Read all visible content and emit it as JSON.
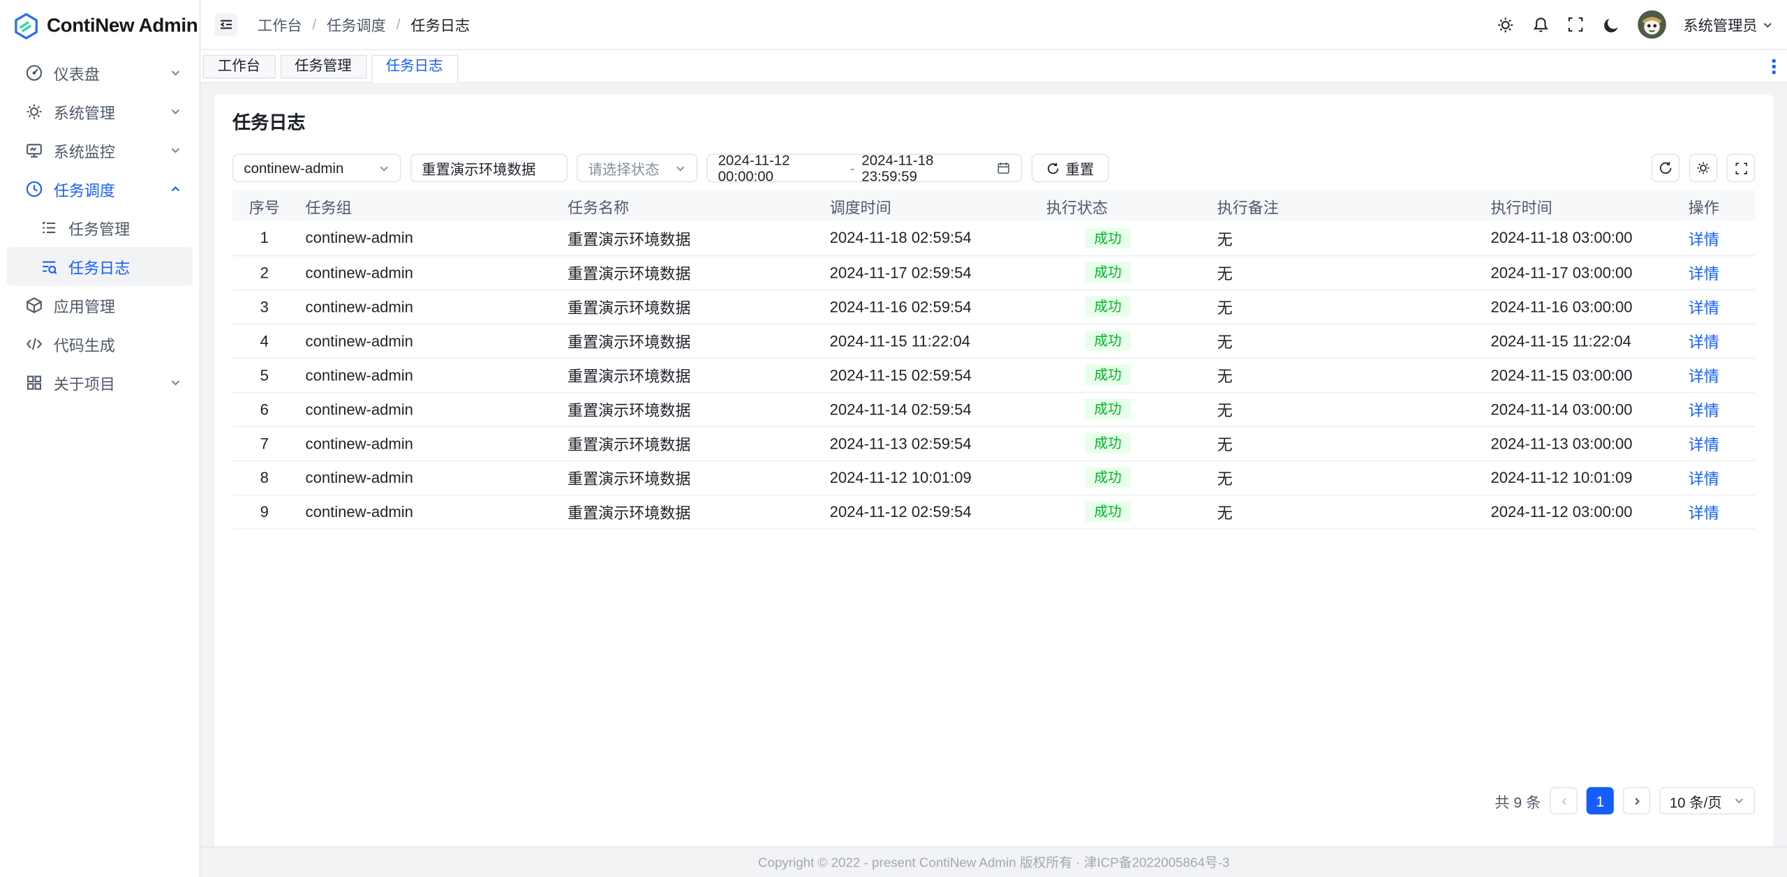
{
  "colors": {
    "primary": "#165dff",
    "success_text": "#00b42a",
    "success_bg": "#e8ffea",
    "content_bg": "#f2f3f5",
    "border": "#e5e6eb"
  },
  "sidebar": {
    "logo_title": "ContiNew Admin",
    "items": [
      {
        "label": "仪表盘",
        "icon": "dashboard-icon",
        "chevron": "down"
      },
      {
        "label": "系统管理",
        "icon": "gear-icon",
        "chevron": "down"
      },
      {
        "label": "系统监控",
        "icon": "monitor-icon",
        "chevron": "down"
      },
      {
        "label": "任务调度",
        "icon": "clock-icon",
        "chevron": "up",
        "active": true
      },
      {
        "label": "任务管理",
        "icon": "checklist-icon",
        "sub": true
      },
      {
        "label": "任务日志",
        "icon": "search-list-icon",
        "sub": true,
        "selected": true
      },
      {
        "label": "应用管理",
        "icon": "cube-icon"
      },
      {
        "label": "代码生成",
        "icon": "code-icon"
      },
      {
        "label": "关于项目",
        "icon": "grid-icon",
        "chevron": "down"
      }
    ]
  },
  "header": {
    "breadcrumb": [
      "工作台",
      "任务调度",
      "任务日志"
    ],
    "breadcrumb_separator": "/",
    "icon_names": [
      "menu-fold-icon",
      "gear-icon",
      "bell-icon",
      "fullscreen-icon",
      "moon-icon"
    ],
    "user_name": "系统管理员"
  },
  "tabs": [
    {
      "label": "工作台",
      "active": false
    },
    {
      "label": "任务管理",
      "active": false
    },
    {
      "label": "任务日志",
      "active": true
    }
  ],
  "page": {
    "title": "任务日志"
  },
  "filters": {
    "group_select_value": "continew-admin",
    "task_name_value": "重置演示环境数据",
    "status_placeholder": "请选择状态",
    "date_start": "2024-11-12 00:00:00",
    "date_separator": "-",
    "date_end": "2024-11-18 23:59:59",
    "reset_label": "重置"
  },
  "table": {
    "headers": [
      "序号",
      "任务组",
      "任务名称",
      "调度时间",
      "执行状态",
      "执行备注",
      "执行时间",
      "操作"
    ],
    "rows": [
      {
        "index": "1",
        "group": "continew-admin",
        "name": "重置演示环境数据",
        "schedule_time": "2024-11-18 02:59:54",
        "status": "成功",
        "remark": "无",
        "exec_time": "2024-11-18 03:00:00",
        "action": "详情"
      },
      {
        "index": "2",
        "group": "continew-admin",
        "name": "重置演示环境数据",
        "schedule_time": "2024-11-17 02:59:54",
        "status": "成功",
        "remark": "无",
        "exec_time": "2024-11-17 03:00:00",
        "action": "详情"
      },
      {
        "index": "3",
        "group": "continew-admin",
        "name": "重置演示环境数据",
        "schedule_time": "2024-11-16 02:59:54",
        "status": "成功",
        "remark": "无",
        "exec_time": "2024-11-16 03:00:00",
        "action": "详情"
      },
      {
        "index": "4",
        "group": "continew-admin",
        "name": "重置演示环境数据",
        "schedule_time": "2024-11-15 11:22:04",
        "status": "成功",
        "remark": "无",
        "exec_time": "2024-11-15 11:22:04",
        "action": "详情"
      },
      {
        "index": "5",
        "group": "continew-admin",
        "name": "重置演示环境数据",
        "schedule_time": "2024-11-15 02:59:54",
        "status": "成功",
        "remark": "无",
        "exec_time": "2024-11-15 03:00:00",
        "action": "详情"
      },
      {
        "index": "6",
        "group": "continew-admin",
        "name": "重置演示环境数据",
        "schedule_time": "2024-11-14 02:59:54",
        "status": "成功",
        "remark": "无",
        "exec_time": "2024-11-14 03:00:00",
        "action": "详情"
      },
      {
        "index": "7",
        "group": "continew-admin",
        "name": "重置演示环境数据",
        "schedule_time": "2024-11-13 02:59:54",
        "status": "成功",
        "remark": "无",
        "exec_time": "2024-11-13 03:00:00",
        "action": "详情"
      },
      {
        "index": "8",
        "group": "continew-admin",
        "name": "重置演示环境数据",
        "schedule_time": "2024-11-12 10:01:09",
        "status": "成功",
        "remark": "无",
        "exec_time": "2024-11-12 10:01:09",
        "action": "详情"
      },
      {
        "index": "9",
        "group": "continew-admin",
        "name": "重置演示环境数据",
        "schedule_time": "2024-11-12 02:59:54",
        "status": "成功",
        "remark": "无",
        "exec_time": "2024-11-12 03:00:00",
        "action": "详情"
      }
    ]
  },
  "pagination": {
    "total_text": "共 9 条",
    "current_page": "1",
    "page_size": "10 条/页"
  },
  "footer": {
    "copyright": "Copyright © 2022 - present ContiNew Admin 版权所有 · 津ICP备2022005864号-3"
  }
}
